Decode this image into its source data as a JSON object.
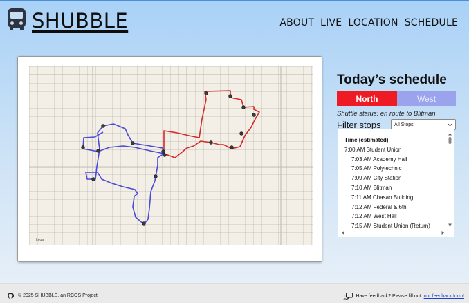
{
  "brand": {
    "name": "SHUBBLE",
    "logo_icon": "bus-icon"
  },
  "nav": {
    "items": [
      "ABOUT",
      "LIVE",
      "LOCATION",
      "SCHEDULE"
    ]
  },
  "map": {
    "legal_text": "Legal"
  },
  "schedule": {
    "title": "Today’s schedule",
    "tabs": [
      {
        "label": "North",
        "color": "#ee1b24",
        "active": true
      },
      {
        "label": "West",
        "color": "#9aa3ec",
        "active": false
      }
    ],
    "status": "Shuttle status: en route to Blitman",
    "filter_label": "Filter stops",
    "filter_value": "All Stops",
    "header": "Time (estimated)",
    "entries": [
      {
        "time": "7:00 AM",
        "stop": "Student Union",
        "primary": true
      },
      {
        "time": "7:03 AM",
        "stop": "Academy Hall"
      },
      {
        "time": "7:05 AM",
        "stop": "Polytechnic"
      },
      {
        "time": "7:09 AM",
        "stop": "City Station"
      },
      {
        "time": "7:10 AM",
        "stop": "Blitman"
      },
      {
        "time": "7:11 AM",
        "stop": "Chasan Building"
      },
      {
        "time": "7:12 AM",
        "stop": "Federal & 6th"
      },
      {
        "time": "7:12 AM",
        "stop": "West Hall"
      },
      {
        "time": "7:15 AM",
        "stop": "Student Union (Return)"
      }
    ]
  },
  "footer": {
    "copyright": "© 2025 SHUBBLE, an RCOS Project",
    "feedback_prefix": "Have feedback? Please fill out",
    "feedback_link": "our feedback form!"
  },
  "colors": {
    "north_route": "#d42a2a",
    "west_route": "#4a4ad6",
    "stop_marker": "#2a2a2a"
  }
}
